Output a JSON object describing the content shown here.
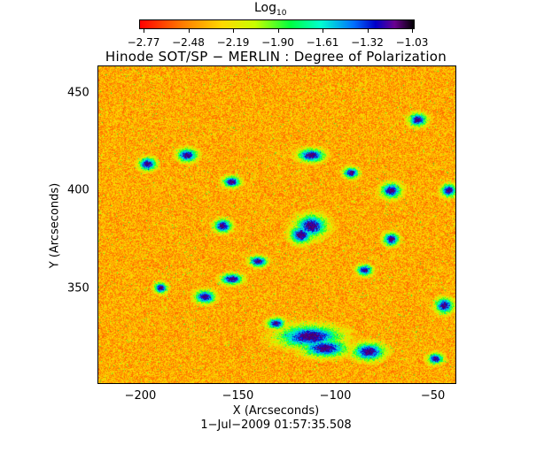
{
  "colorbar": {
    "label": "Log",
    "label_subscript": "10",
    "ticks": [
      "−2.77",
      "−2.48",
      "−2.19",
      "−1.90",
      "−1.61",
      "−1.32",
      "−1.03"
    ],
    "range": [
      -2.77,
      -1.03
    ],
    "colormap": "rainbow (red low → black high)"
  },
  "title": "Hinode SOT/SP − MERLIN : Degree of Polarization",
  "x_axis": {
    "label": "X (Arcseconds)",
    "ticks": [
      "−200",
      "−150",
      "−100",
      "−50"
    ],
    "range": [
      -222,
      -38
    ]
  },
  "y_axis": {
    "label": "Y (Arcseconds)",
    "ticks": [
      "350",
      "400",
      "450"
    ],
    "range": [
      301,
      464
    ]
  },
  "date_label": "1−Jul−2009 01:57:35.508"
}
